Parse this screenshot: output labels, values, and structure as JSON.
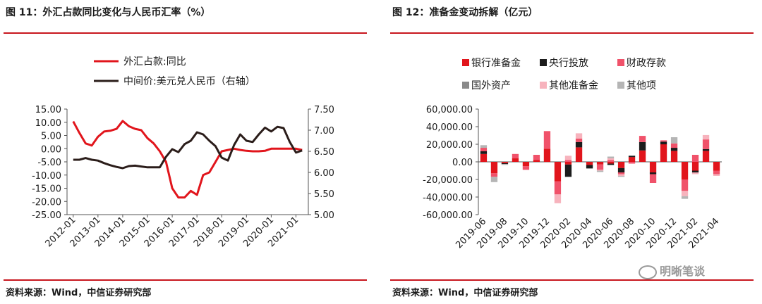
{
  "left": {
    "fig_title": "图 11：外汇占款同比变化与人民币汇率（%）",
    "source": "资料来源：Wind，中信证券研究部",
    "chart_data": {
      "type": "line",
      "series": [
        {
          "name": "外汇占款:同比",
          "axis": "left",
          "color": "#e1151c",
          "x": [
            "2012-01",
            "2012-04",
            "2012-07",
            "2012-10",
            "2013-01",
            "2013-04",
            "2013-07",
            "2013-10",
            "2014-01",
            "2014-04",
            "2014-07",
            "2014-10",
            "2015-01",
            "2015-04",
            "2015-07",
            "2015-10",
            "2016-01",
            "2016-04",
            "2016-07",
            "2016-10",
            "2017-01",
            "2017-04",
            "2017-07",
            "2017-10",
            "2018-01",
            "2018-04",
            "2018-07",
            "2018-10",
            "2019-01",
            "2019-04",
            "2019-07",
            "2019-10",
            "2020-01",
            "2020-04",
            "2020-07",
            "2020-10",
            "2021-01",
            "2021-04"
          ],
          "values": [
            10.3,
            6,
            2,
            1.2,
            4.5,
            6.5,
            6.8,
            7.5,
            10.5,
            8.5,
            7.5,
            7,
            4,
            2,
            -1,
            -5,
            -15,
            -18.5,
            -18.5,
            -16,
            -17.5,
            -10,
            -9,
            -5,
            -1,
            -0.5,
            0,
            -0.5,
            -0.8,
            -1,
            -1,
            -0.8,
            0,
            0,
            0,
            0,
            0,
            -0.5
          ]
        },
        {
          "name": "中间价:美元兑人民币（右轴）",
          "axis": "right",
          "color": "#2b1d1a",
          "x": [
            "2012-01",
            "2012-04",
            "2012-07",
            "2012-10",
            "2013-01",
            "2013-04",
            "2013-07",
            "2013-10",
            "2014-01",
            "2014-04",
            "2014-07",
            "2014-10",
            "2015-01",
            "2015-04",
            "2015-07",
            "2015-10",
            "2016-01",
            "2016-04",
            "2016-07",
            "2016-10",
            "2017-01",
            "2017-04",
            "2017-07",
            "2017-10",
            "2018-01",
            "2018-04",
            "2018-07",
            "2018-10",
            "2019-01",
            "2019-04",
            "2019-07",
            "2019-10",
            "2020-01",
            "2020-04",
            "2020-07",
            "2020-10",
            "2021-01",
            "2021-04"
          ],
          "values": [
            6.3,
            6.3,
            6.34,
            6.3,
            6.28,
            6.22,
            6.17,
            6.13,
            6.1,
            6.15,
            6.16,
            6.14,
            6.12,
            6.12,
            6.12,
            6.37,
            6.55,
            6.48,
            6.67,
            6.75,
            6.95,
            6.9,
            6.75,
            6.62,
            6.35,
            6.28,
            6.65,
            6.9,
            6.75,
            6.72,
            6.9,
            7.06,
            6.97,
            7.08,
            7.05,
            6.72,
            6.47,
            6.52
          ]
        }
      ],
      "ylim_left": [
        -25,
        15
      ],
      "ylim_right": [
        5.0,
        7.5
      ],
      "yticks_left": [
        "15.00",
        "10.00",
        "5.00",
        "0.00",
        "-5.00",
        "-10.00",
        "-15.00",
        "-20.00",
        "-25.00"
      ],
      "yticks_right": [
        "7.50",
        "7.00",
        "6.50",
        "6.00",
        "5.50",
        "5.00"
      ],
      "xtick_labels": [
        "2012-01",
        "2013-01",
        "2014-01",
        "2015-01",
        "2016-01",
        "2017-01",
        "2018-01",
        "2019-01",
        "2020-01",
        "2021-01"
      ],
      "legend_position": "top"
    }
  },
  "right": {
    "fig_title": "图 12：准备金变动拆解（亿元）",
    "source": "资料来源：Wind，中信证券研究部",
    "chart_data": {
      "type": "bar",
      "stacked": true,
      "categories": [
        "2019-06",
        "2019-07",
        "2019-08",
        "2019-09",
        "2019-10",
        "2019-11",
        "2019-12",
        "2020-01",
        "2020-02",
        "2020-03",
        "2020-04",
        "2020-05",
        "2020-06",
        "2020-07",
        "2020-08",
        "2020-09",
        "2020-10",
        "2020-11",
        "2020-12",
        "2021-01",
        "2021-02",
        "2021-03",
        "2021-04"
      ],
      "xtick_labels": [
        "2019-06",
        "2019-08",
        "2019-10",
        "2019-12",
        "2020-02",
        "2020-04",
        "2020-06",
        "2020-08",
        "2020-10",
        "2020-12",
        "2021-02",
        "2021-04"
      ],
      "series": [
        {
          "name": "银行准备金",
          "color": "#e1151c",
          "values": [
            9000,
            -13000,
            -1500,
            4000,
            -5000,
            2000,
            15000,
            -22000,
            -3000,
            16500,
            -3500,
            -3000,
            -2000,
            -7000,
            5500,
            13000,
            -12000,
            20000,
            12500,
            -20000,
            -10000,
            12500,
            -10000
          ]
        },
        {
          "name": "央行投放",
          "color": "#1c1c1c",
          "values": [
            3000,
            0,
            -1000,
            0,
            0,
            0,
            0,
            0,
            -14000,
            6000,
            -4000,
            0,
            -1500,
            -5000,
            1500,
            9500,
            -2000,
            3000,
            3500,
            0,
            -2000,
            2000,
            0
          ]
        },
        {
          "name": "财政存款",
          "color": "#f0526a",
          "values": [
            4000,
            -4000,
            0,
            5000,
            -4000,
            6000,
            20000,
            -15000,
            2000,
            4000,
            0,
            -6000,
            2000,
            -2000,
            -2000,
            7000,
            -10000,
            1500,
            5000,
            -13000,
            8000,
            11000,
            -4000
          ]
        },
        {
          "name": "国外资产",
          "color": "#8a8a8a",
          "values": [
            0,
            0,
            0,
            0,
            0,
            0,
            0,
            0,
            0,
            0,
            0,
            0,
            0,
            0,
            0,
            0,
            0,
            0,
            0,
            0,
            0,
            0,
            0
          ]
        },
        {
          "name": "其他准备金",
          "color": "#f7b3bd",
          "values": [
            0,
            0,
            0,
            0,
            0,
            0,
            0,
            -10000,
            5000,
            6000,
            0,
            -1000,
            2000,
            -2000,
            0,
            0,
            0,
            0,
            0,
            -6000,
            -2000,
            5000,
            -2000
          ]
        },
        {
          "name": "其他项",
          "color": "#b5b5b5",
          "values": [
            3000,
            -6000,
            -1000,
            0,
            0,
            0,
            0,
            0,
            0,
            0,
            0,
            -1500,
            2000,
            -1000,
            0,
            0,
            0,
            0,
            7000,
            -3000,
            0,
            0,
            0
          ]
        }
      ],
      "ylim": [
        -60000,
        60000
      ],
      "yticks": [
        "60,000.00",
        "40,000.00",
        "20,000.00",
        "0.00",
        "-20,000.00",
        "-40,000.00",
        "-60,000.00"
      ],
      "legend_position": "top"
    }
  },
  "watermark": "明晰笔谈"
}
